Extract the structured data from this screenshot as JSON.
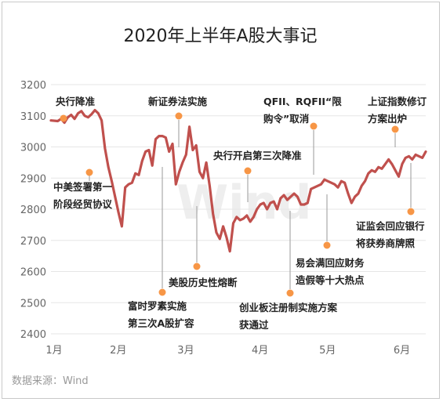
{
  "chart_data": {
    "type": "line",
    "title": "2020年上半年A股大事记",
    "source": "数据来源：Wind",
    "watermark": "Wind",
    "ylim": [
      2400,
      3200
    ],
    "yticks": [
      3200,
      3100,
      3000,
      2900,
      2800,
      2700,
      2600,
      2500,
      2400
    ],
    "xticks": [
      {
        "label": "1月",
        "t": 0
      },
      {
        "label": "2月",
        "t": 19
      },
      {
        "label": "3月",
        "t": 39
      },
      {
        "label": "4月",
        "t": 61
      },
      {
        "label": "5月",
        "t": 81
      },
      {
        "label": "6月",
        "t": 103
      }
    ],
    "grid": true,
    "line_color": "#c0504d",
    "series": [
      {
        "values": [
          [
            0,
            3085
          ],
          [
            2,
            3083
          ],
          [
            3,
            3090
          ],
          [
            4,
            3078
          ],
          [
            5,
            3095
          ],
          [
            6,
            3103
          ],
          [
            7,
            3090
          ],
          [
            8,
            3108
          ],
          [
            9,
            3115
          ],
          [
            10,
            3100
          ],
          [
            11,
            3095
          ],
          [
            12,
            3105
          ],
          [
            13,
            3118
          ],
          [
            14,
            3108
          ],
          [
            15,
            3085
          ],
          [
            16,
            2995
          ],
          [
            17,
            2935
          ],
          [
            18,
            2890
          ],
          [
            19,
            2840
          ],
          [
            20,
            2790
          ],
          [
            21,
            2745
          ],
          [
            22,
            2870
          ],
          [
            23,
            2880
          ],
          [
            24,
            2885
          ],
          [
            25,
            2915
          ],
          [
            26,
            2910
          ],
          [
            27,
            2955
          ],
          [
            28,
            2985
          ],
          [
            29,
            2990
          ],
          [
            30,
            2940
          ],
          [
            31,
            3025
          ],
          [
            32,
            3035
          ],
          [
            33,
            3035
          ],
          [
            34,
            3030
          ],
          [
            35,
            2985
          ],
          [
            36,
            3010
          ],
          [
            37,
            2880
          ],
          [
            38,
            2920
          ],
          [
            39,
            2950
          ],
          [
            40,
            2975
          ],
          [
            41,
            3065
          ],
          [
            42,
            2990
          ],
          [
            43,
            3005
          ],
          [
            44,
            2920
          ],
          [
            45,
            2900
          ],
          [
            46,
            2950
          ],
          [
            47,
            2875
          ],
          [
            48,
            2785
          ],
          [
            49,
            2725
          ],
          [
            50,
            2705
          ],
          [
            51,
            2745
          ],
          [
            52,
            2710
          ],
          [
            53,
            2665
          ],
          [
            54,
            2755
          ],
          [
            55,
            2775
          ],
          [
            56,
            2765
          ],
          [
            57,
            2770
          ],
          [
            58,
            2780
          ],
          [
            59,
            2760
          ],
          [
            60,
            2775
          ],
          [
            61,
            2800
          ],
          [
            62,
            2815
          ],
          [
            63,
            2820
          ],
          [
            64,
            2800
          ],
          [
            65,
            2820
          ],
          [
            66,
            2825
          ],
          [
            67,
            2800
          ],
          [
            68,
            2835
          ],
          [
            69,
            2845
          ],
          [
            70,
            2830
          ],
          [
            71,
            2840
          ],
          [
            72,
            2850
          ],
          [
            73,
            2840
          ],
          [
            74,
            2815
          ],
          [
            75,
            2815
          ],
          [
            76,
            2820
          ],
          [
            77,
            2865
          ],
          [
            78,
            2870
          ],
          [
            79,
            2875
          ],
          [
            80,
            2880
          ],
          [
            81,
            2895
          ],
          [
            82,
            2890
          ],
          [
            83,
            2885
          ],
          [
            84,
            2880
          ],
          [
            85,
            2870
          ],
          [
            86,
            2890
          ],
          [
            87,
            2885
          ],
          [
            88,
            2850
          ],
          [
            89,
            2820
          ],
          [
            90,
            2840
          ],
          [
            91,
            2850
          ],
          [
            92,
            2875
          ],
          [
            93,
            2890
          ],
          [
            94,
            2915
          ],
          [
            95,
            2925
          ],
          [
            96,
            2920
          ],
          [
            97,
            2935
          ],
          [
            98,
            2930
          ],
          [
            99,
            2945
          ],
          [
            100,
            2960
          ],
          [
            101,
            2945
          ],
          [
            102,
            2925
          ],
          [
            103,
            2905
          ],
          [
            104,
            2945
          ],
          [
            105,
            2965
          ],
          [
            106,
            2970
          ],
          [
            107,
            2960
          ],
          [
            108,
            2975
          ],
          [
            109,
            2970
          ],
          [
            110,
            2965
          ],
          [
            111,
            2985
          ]
        ]
      }
    ],
    "annotations": [
      {
        "lines": [
          "央行降准"
        ],
        "dot_color": "#f79646"
      },
      {
        "lines": [
          "中美签署第一",
          "阶段经贸协议"
        ],
        "dot_color": "#f79646"
      },
      {
        "lines": [
          "新证券法实施"
        ],
        "dot_color": "#f79646"
      },
      {
        "lines": [
          "富时罗素实施",
          "第三次A股扩容"
        ],
        "dot_color": "#f79646"
      },
      {
        "lines": [
          "美股历史性熔断"
        ],
        "dot_color": "#f79646"
      },
      {
        "lines": [
          "央行开启第三次降准"
        ],
        "dot_color": "#f79646"
      },
      {
        "lines": [
          "创业板注册制实施方案",
          "获通过"
        ],
        "dot_color": "#f79646"
      },
      {
        "lines": [
          "QFII、RQFII“限",
          "购令”取消"
        ],
        "dot_color": "#f79646"
      },
      {
        "lines": [
          "易会满回应财务",
          "造假等十大热点"
        ],
        "dot_color": "#f79646"
      },
      {
        "lines": [
          "上证指数修订",
          "方案出炉"
        ],
        "dot_color": "#f79646"
      },
      {
        "lines": [
          "证监会回应银行",
          "将获券商牌照"
        ],
        "dot_color": "#f79646"
      }
    ]
  }
}
